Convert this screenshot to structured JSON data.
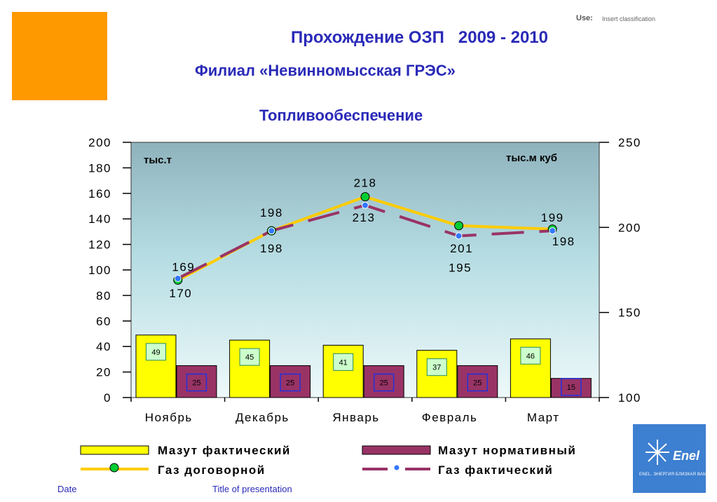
{
  "header": {
    "use_label": "Use:",
    "use_value": "Insert classification",
    "title_line1": "Прохождение ОЗП   2009 - 2010",
    "title_line2": "Филиал «Невинномысская ГРЭС»",
    "title_line3": "Топливообеспечение"
  },
  "footer": {
    "date": "Date",
    "presentation_title": "Title of presentation"
  },
  "logo": {
    "brand": "Enel",
    "tagline": "ENEL. ЭНЕРГИЯ БЛИЗКАЯ ВАМ."
  },
  "colors": {
    "accent_orange": "#FF9900",
    "title_blue": "#2a2ab8",
    "mazut_fact": "#FFFF00",
    "mazut_norm": "#993366",
    "gas_contract": "#FFCC00",
    "gas_fact": "#993366",
    "plot_bg_top": "#8fb3bd",
    "plot_bg_bottom": "#e6f6f8"
  },
  "chart_data": {
    "type": "bar",
    "categories": [
      "Ноябрь",
      "Декабрь",
      "Январь",
      "Февраль",
      "Март"
    ],
    "left_unit": "тыс.т",
    "right_unit": "тыс.м куб",
    "ylim_left": [
      0,
      200
    ],
    "yticks_left": [
      "0",
      "20",
      "40",
      "60",
      "80",
      "100",
      "120",
      "140",
      "160",
      "180",
      "200"
    ],
    "ylim_right": [
      100,
      250
    ],
    "yticks_right": [
      "100",
      "150",
      "200",
      "250"
    ],
    "series": [
      {
        "name": "Мазут фактический",
        "kind": "bar",
        "axis": "left",
        "values": [
          49,
          45,
          41,
          37,
          46
        ]
      },
      {
        "name": "Мазут нормативный",
        "kind": "bar",
        "axis": "left",
        "values": [
          25,
          25,
          25,
          25,
          15
        ]
      },
      {
        "name": "Газ договорной",
        "kind": "line",
        "axis": "right",
        "values": [
          169,
          198,
          218,
          201,
          199
        ]
      },
      {
        "name": "Газ фактический",
        "kind": "line",
        "axis": "right",
        "values": [
          170,
          198,
          213,
          195,
          198
        ]
      }
    ]
  }
}
